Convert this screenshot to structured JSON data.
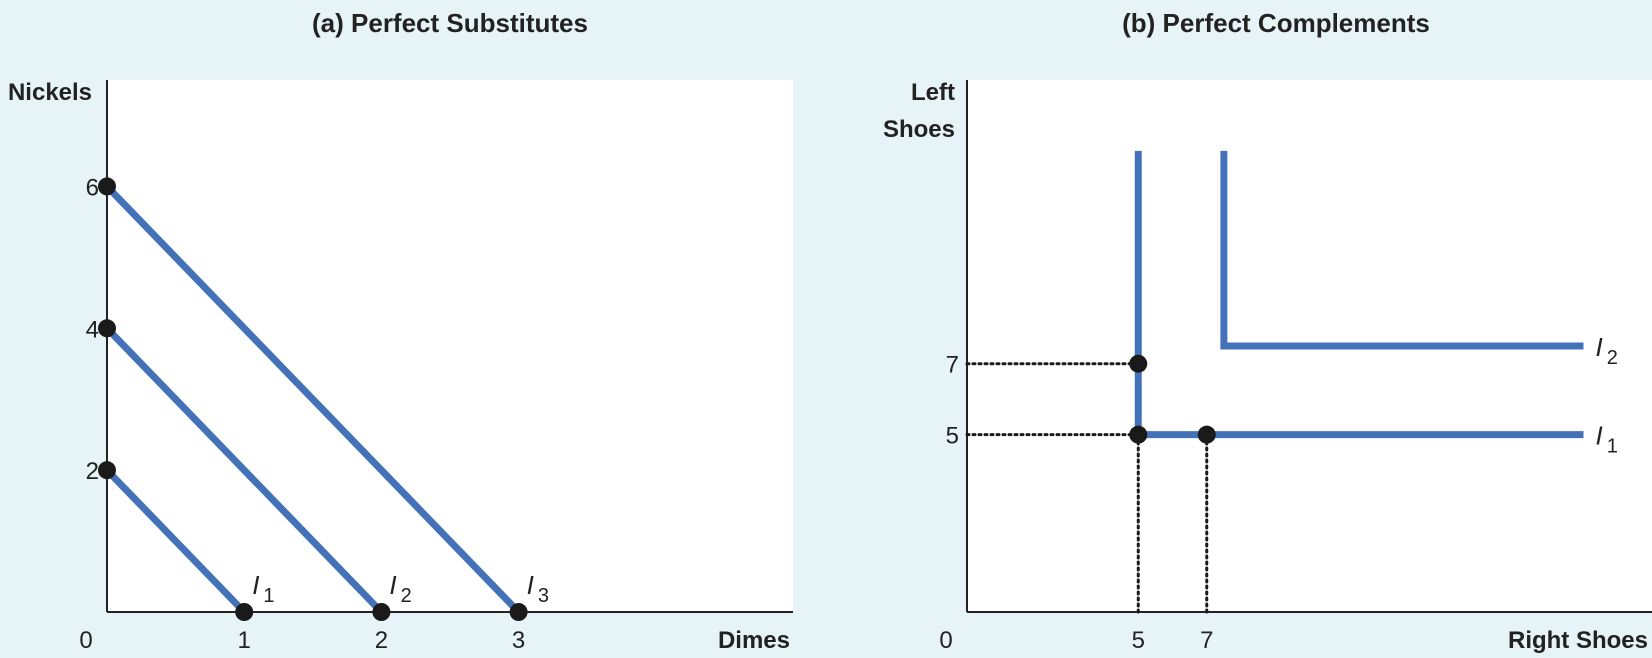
{
  "chart_data": [
    {
      "type": "line",
      "title": "(a) Perfect Substitutes",
      "ylabel": "Nickels",
      "xlabel": "Dimes",
      "origin_label": "0",
      "xlim": [
        0,
        5
      ],
      "ylim": [
        0,
        7.5
      ],
      "x_ticks": [
        "1",
        "2",
        "3"
      ],
      "y_ticks": [
        "2",
        "4",
        "6"
      ],
      "series": [
        {
          "name": "I",
          "subscript": "1",
          "points": [
            [
              0,
              2
            ],
            [
              1,
              0
            ]
          ]
        },
        {
          "name": "I",
          "subscript": "2",
          "points": [
            [
              0,
              4
            ],
            [
              2,
              0
            ]
          ]
        },
        {
          "name": "I",
          "subscript": "3",
          "points": [
            [
              0,
              6
            ],
            [
              3,
              0
            ]
          ]
        }
      ],
      "markers": [
        [
          0,
          2
        ],
        [
          1,
          0
        ],
        [
          0,
          4
        ],
        [
          2,
          0
        ],
        [
          0,
          6
        ],
        [
          3,
          0
        ]
      ],
      "colors": {
        "curve": "#4472b8",
        "marker": "#1a1a1a"
      }
    },
    {
      "type": "line",
      "title": "(b) Perfect Complements",
      "ylabel_line1": "Left",
      "ylabel_line2": "Shoes",
      "xlabel": "Right Shoes",
      "origin_label": "0",
      "xlim": [
        0,
        20
      ],
      "ylim": [
        0,
        15
      ],
      "x_ticks": [
        "5",
        "7"
      ],
      "y_ticks": [
        "5",
        "7"
      ],
      "series": [
        {
          "name": "I",
          "subscript": "1",
          "points": [
            [
              5,
              13
            ],
            [
              5,
              5
            ],
            [
              18,
              5
            ]
          ]
        },
        {
          "name": "I",
          "subscript": "2",
          "points": [
            [
              7.5,
              13
            ],
            [
              7.5,
              7.5
            ],
            [
              18,
              7.5
            ]
          ]
        }
      ],
      "markers": [
        [
          5,
          7
        ],
        [
          5,
          5
        ],
        [
          7,
          5
        ]
      ],
      "guides": [
        {
          "from": [
            0,
            7
          ],
          "to": [
            5,
            7
          ]
        },
        {
          "from": [
            0,
            5
          ],
          "to": [
            5,
            5
          ]
        },
        {
          "from": [
            5,
            0
          ],
          "to": [
            5,
            5
          ]
        },
        {
          "from": [
            7,
            0
          ],
          "to": [
            7,
            5
          ]
        }
      ],
      "colors": {
        "curve": "#4472b8",
        "marker": "#1a1a1a"
      }
    }
  ]
}
